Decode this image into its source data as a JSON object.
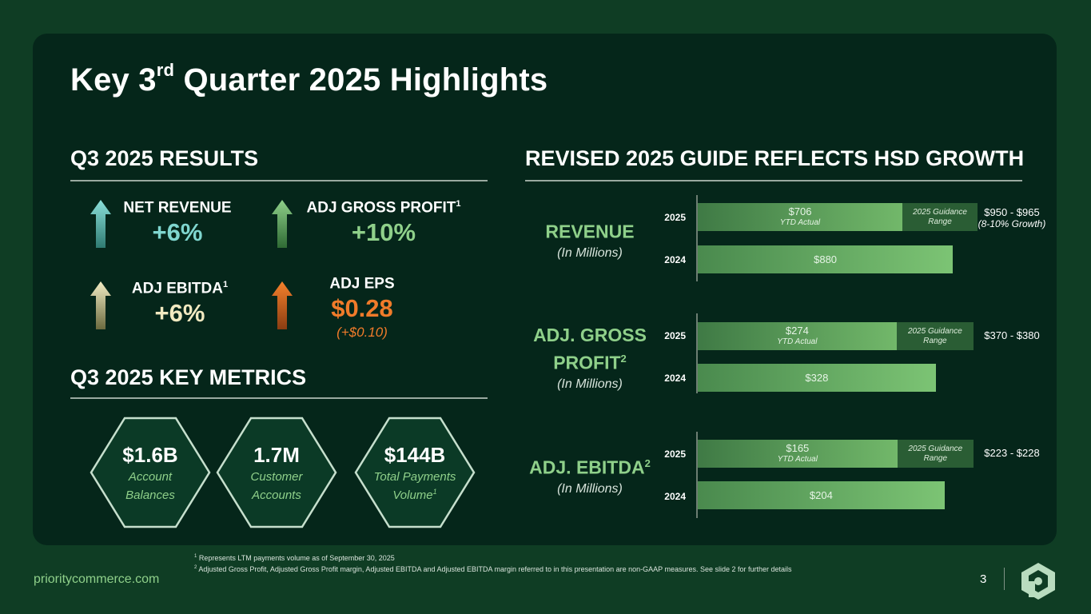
{
  "title": {
    "pre": "Key 3",
    "sup": "rd",
    "post": " Quarter 2025 Highlights"
  },
  "sections": {
    "results": "Q3 2025 RESULTS",
    "metrics": "Q3 2025 KEY METRICS",
    "guide": "REVISED 2025 GUIDE REFLECTS HSD GROWTH"
  },
  "results": [
    {
      "label": "NET REVENUE",
      "sup": "",
      "value": "+6%",
      "sub": "",
      "arrow": "up-arrow-teal",
      "color": "#7fd6cf"
    },
    {
      "label": "ADJ GROSS PROFIT",
      "sup": "1",
      "value": "+10%",
      "sub": "",
      "arrow": "up-arrow-green",
      "color": "#8fd08a"
    },
    {
      "label": "ADJ EBITDA",
      "sup": "1",
      "value": "+6%",
      "sub": "",
      "arrow": "up-arrow-cream",
      "color": "#f1e9c0"
    },
    {
      "label": "ADJ EPS",
      "sup": "",
      "value": "$0.28",
      "sub": "(+$0.10)",
      "arrow": "up-arrow-orange",
      "color": "#f07b2a"
    }
  ],
  "key_metrics": [
    {
      "value": "$1.6B",
      "line1": "Account",
      "line2": "Balances",
      "sup": ""
    },
    {
      "value": "1.7M",
      "line1": "Customer",
      "line2": "Accounts",
      "sup": ""
    },
    {
      "value": "$144B",
      "line1": "Total Payments",
      "line2": "Volume",
      "sup": "1"
    }
  ],
  "guide_categories": [
    {
      "name1": "REVENUE",
      "name2": "",
      "sup": "",
      "unit": "(In Millions)"
    },
    {
      "name1": "ADJ. GROSS",
      "name2": "PROFIT",
      "sup": "2",
      "unit": "(In Millions)"
    },
    {
      "name1": "ADJ. EBITDA",
      "name2": "",
      "sup": "2",
      "unit": "(In Millions)"
    }
  ],
  "chart_data": {
    "type": "bar",
    "orientation": "horizontal",
    "units": "USD millions",
    "groups": [
      {
        "category": "REVENUE",
        "rows": [
          {
            "year": "2025",
            "value": 706,
            "value_label": "$706",
            "value_sub": "YTD Actual",
            "guide_label": "2025 Guidance Range",
            "guide_low": 950,
            "guide_high": 965,
            "range_label": "$950 - $965",
            "range_sub": "(8-10% Growth)"
          },
          {
            "year": "2024",
            "value": 880,
            "value_label": "$880"
          }
        ]
      },
      {
        "category": "ADJ. GROSS PROFIT",
        "rows": [
          {
            "year": "2025",
            "value": 274,
            "value_label": "$274",
            "value_sub": "YTD Actual",
            "guide_label": "2025 Guidance Range",
            "guide_low": 370,
            "guide_high": 380,
            "range_label": "$370 - $380",
            "range_sub": ""
          },
          {
            "year": "2024",
            "value": 328,
            "value_label": "$328"
          }
        ]
      },
      {
        "category": "ADJ. EBITDA",
        "rows": [
          {
            "year": "2025",
            "value": 165,
            "value_label": "$165",
            "value_sub": "YTD Actual",
            "guide_label": "2025 Guidance Range",
            "guide_low": 223,
            "guide_high": 228,
            "range_label": "$223 - $228",
            "range_sub": ""
          },
          {
            "year": "2024",
            "value": 204,
            "value_label": "$204"
          }
        ]
      }
    ]
  },
  "guide_label": {
    "line1": "2025 Guidance",
    "line2": "Range"
  },
  "footnotes": [
    {
      "sup": "1",
      "text": " Represents LTM payments volume as of September 30, 2025"
    },
    {
      "sup": "2",
      "text": " Adjusted Gross Profit, Adjusted Gross Profit margin, Adjusted EBITDA and Adjusted EBITDA margin referred to in this presentation are non-GAAP measures. See slide 2 for further details"
    }
  ],
  "footer": {
    "site": "prioritycommerce.com",
    "page": "3"
  }
}
